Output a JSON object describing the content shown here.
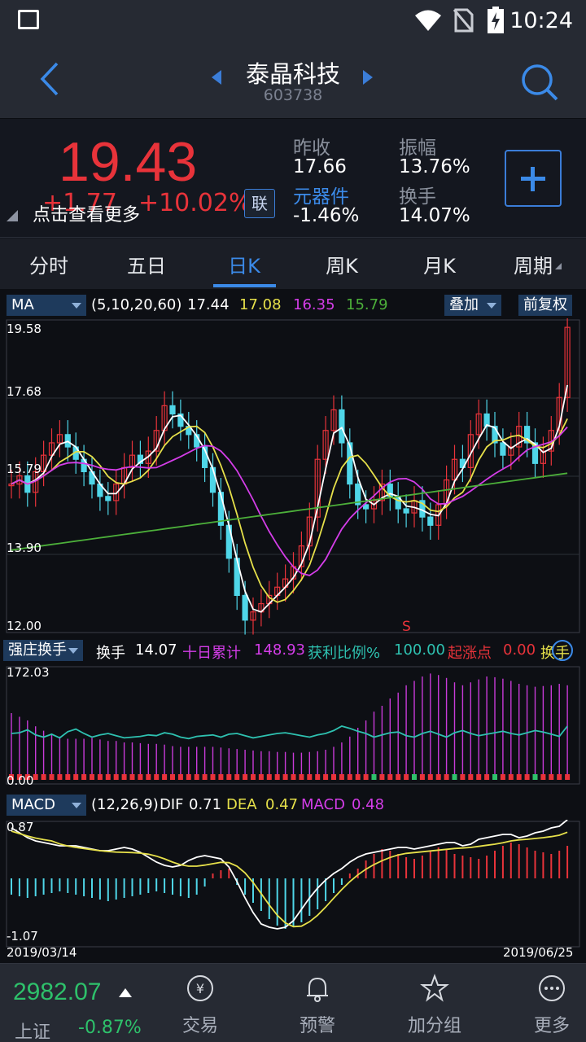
{
  "status": {
    "time": "10:24"
  },
  "header": {
    "name": "泰晶科技",
    "code": "603738"
  },
  "quote": {
    "price": "19.43",
    "change": "+1.77",
    "change_pct": "+10.02%",
    "hint": "点击查看更多",
    "lian": "联",
    "prev_close_label": "昨收",
    "prev_close": "17.66",
    "sector_label": "元器件",
    "sector_change": "-1.46%",
    "amplitude_label": "振幅",
    "amplitude": "13.76%",
    "turnover_label": "换手",
    "turnover": "14.07%"
  },
  "tabs": [
    "分时",
    "五日",
    "日K",
    "周K",
    "月K",
    "周期"
  ],
  "active_tab": 2,
  "ma_bar": {
    "select": "MA",
    "params": "(5,10,20,60)",
    "ma5": "17.44",
    "ma10": "17.08",
    "ma20": "16.35",
    "ma60": "15.79",
    "overlay_btn": "叠加",
    "adjust_btn": "前复权"
  },
  "colors": {
    "up": "#e8333a",
    "down": "#4fd6e8",
    "ma5": "#ffffff",
    "ma10": "#e6e04a",
    "ma20": "#d43de8",
    "ma60": "#4caf3a",
    "accent": "#3b8ae8"
  },
  "price_axis": [
    "19.58",
    "17.68",
    "15.79",
    "13.90",
    "12.00"
  ],
  "signal_mark": "S",
  "turn_bar": {
    "select": "强庄换手",
    "turn_label": "换手",
    "turn_val": "14.07",
    "cum_label": "十日累计",
    "cum_val": "148.93",
    "profit_label": "获利比例%",
    "profit_val": "100.00",
    "start_label": "起涨点",
    "start_val": "0.00",
    "extra_label": "换手"
  },
  "turn_axis": [
    "172.03",
    "0.00"
  ],
  "macd_bar": {
    "select": "MACD",
    "params": "(12,26,9)",
    "dif_label": "DIF",
    "dif": "0.71",
    "dea_label": "DEA",
    "dea": "0.47",
    "macd_label": "MACD",
    "macd": "0.48"
  },
  "macd_axis": [
    "0.87",
    "-1.07"
  ],
  "dates": {
    "start": "2019/03/14",
    "end": "2019/06/25"
  },
  "index": {
    "value": "2982.07",
    "name": "上证",
    "pct": "-0.87%"
  },
  "bottom_nav": [
    {
      "label": "交易",
      "icon": "trade-icon"
    },
    {
      "label": "预警",
      "icon": "bell-icon"
    },
    {
      "label": "加分组",
      "icon": "star-icon"
    },
    {
      "label": "更多",
      "icon": "more-icon"
    }
  ]
}
